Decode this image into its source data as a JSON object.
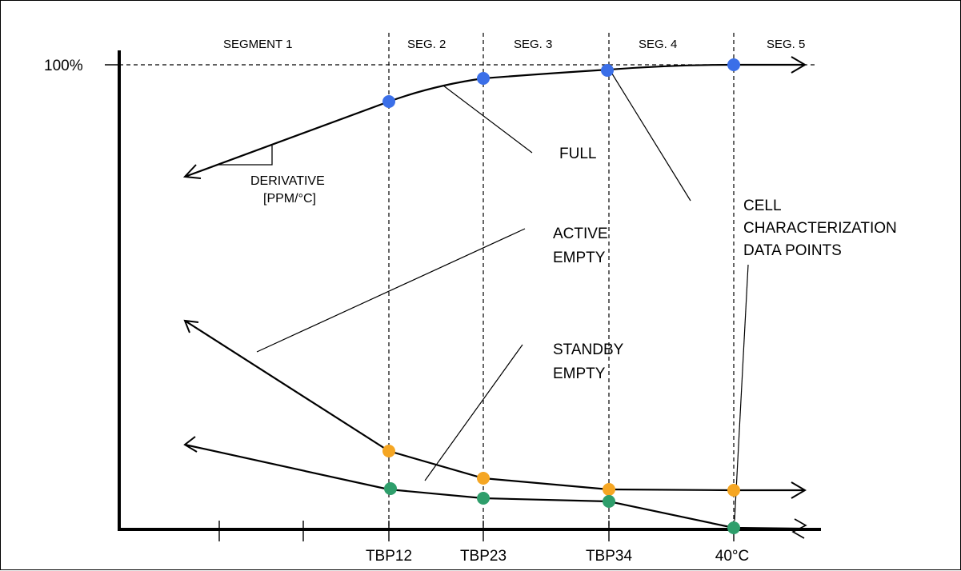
{
  "segments": [
    "SEGMENT 1",
    "SEG. 2",
    "SEG. 3",
    "SEG. 4",
    "SEG. 5"
  ],
  "y_axis": {
    "top_label": "100%"
  },
  "x_axis": {
    "tick_labels": [
      "TBP12",
      "TBP23",
      "TBP34",
      "40°C"
    ]
  },
  "annotations": {
    "derivative": {
      "line1": "DERIVATIVE",
      "line2": "[PPM/°C]"
    },
    "full": "FULL",
    "active_empty": {
      "line1": "ACTIVE",
      "line2": "EMPTY"
    },
    "standby_empty": {
      "line1": "STANDBY",
      "line2": "EMPTY"
    },
    "cell_points": {
      "line1": "CELL",
      "line2": "CHARACTERIZATION",
      "line3": "DATA POINTS"
    }
  },
  "colors": {
    "full_points": "#3b6fe8",
    "active_empty_points": "#f5a623",
    "standby_empty_points": "#2e9e6b",
    "line": "#000000"
  }
}
